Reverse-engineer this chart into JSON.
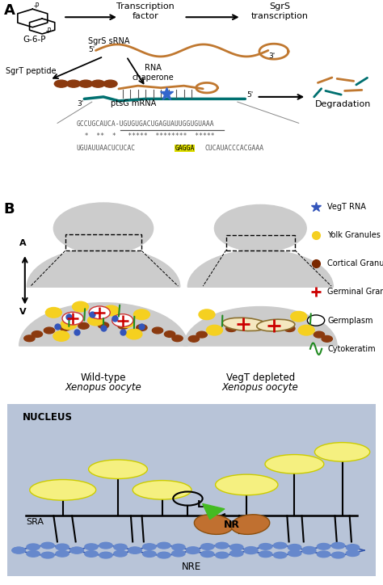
{
  "bg_color": "#ffffff",
  "seq_line1": "GCCUGCAUCA-UGUGUGACUGAGUAUUGGUGUAAA",
  "seq_stars": "  *  **  *   *****  ********  *****",
  "seq_pre_gagga": "UGUAUUAACUCUCAC",
  "seq_gagga": "GAGGA",
  "seq_post_gagga": "CUCAUACCCACGAAA",
  "legend_items": [
    {
      "label": "VegT RNA",
      "color": "#3355bb",
      "marker": "*"
    },
    {
      "label": "Yolk Granules",
      "color": "#f5d020",
      "marker": "o"
    },
    {
      "label": "Cortical Granules",
      "color": "#7a2800",
      "marker": "o"
    },
    {
      "label": "Germinal Granules",
      "color": "#cc0000",
      "marker": "+"
    },
    {
      "label": "Germplasm",
      "color": "#000000",
      "marker": "o"
    },
    {
      "label": "Cytokeratim",
      "color": "#228b22",
      "marker": "s"
    }
  ],
  "nucleus_bg": "#b8c4d8",
  "nucleus_border": "#8899aa",
  "nucleus_label": "NUCLEUS",
  "nre_label": "NRE",
  "sra_label": "SRA",
  "ligand_label": "L",
  "ligand_color": "#44bb22",
  "orange_rna": "#c07830",
  "teal_mrna": "#007070",
  "brown_peptide": "#8b3a0f"
}
